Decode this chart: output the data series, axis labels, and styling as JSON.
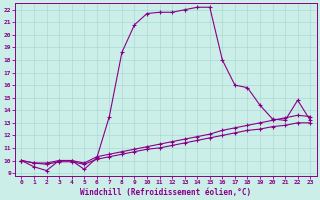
{
  "xlabel": "Windchill (Refroidissement éolien,°C)",
  "xlim": [
    -0.5,
    23.5
  ],
  "ylim": [
    8.8,
    22.5
  ],
  "xticks": [
    0,
    1,
    2,
    3,
    4,
    5,
    6,
    7,
    8,
    9,
    10,
    11,
    12,
    13,
    14,
    15,
    16,
    17,
    18,
    19,
    20,
    21,
    22,
    23
  ],
  "yticks": [
    9,
    10,
    11,
    12,
    13,
    14,
    15,
    16,
    17,
    18,
    19,
    20,
    21,
    22
  ],
  "bg_color": "#cceee8",
  "line_color": "#880088",
  "line1_x": [
    0,
    1,
    2,
    3,
    4,
    5,
    6,
    7,
    8,
    9,
    10,
    11,
    12,
    13,
    14,
    15,
    16,
    17,
    18,
    19,
    20,
    21,
    22,
    23
  ],
  "line1_y": [
    10.0,
    9.5,
    9.2,
    10.0,
    10.0,
    9.3,
    10.2,
    13.5,
    18.6,
    20.8,
    21.7,
    21.8,
    21.8,
    22.0,
    22.2,
    22.2,
    18.0,
    16.0,
    15.8,
    14.4,
    13.3,
    13.2,
    14.8,
    13.2
  ],
  "line2_x": [
    0,
    1,
    2,
    3,
    4,
    5,
    6,
    7,
    8,
    9,
    10,
    11,
    12,
    13,
    14,
    15,
    16,
    17,
    18,
    19,
    20,
    21,
    22,
    23
  ],
  "line2_y": [
    10.0,
    9.8,
    9.8,
    10.0,
    10.0,
    9.8,
    10.3,
    10.5,
    10.7,
    10.9,
    11.1,
    11.3,
    11.5,
    11.7,
    11.9,
    12.1,
    12.4,
    12.6,
    12.8,
    13.0,
    13.2,
    13.4,
    13.6,
    13.5
  ],
  "line3_x": [
    0,
    1,
    2,
    3,
    4,
    5,
    6,
    7,
    8,
    9,
    10,
    11,
    12,
    13,
    14,
    15,
    16,
    17,
    18,
    19,
    20,
    21,
    22,
    23
  ],
  "line3_y": [
    10.0,
    9.8,
    9.7,
    9.9,
    9.9,
    9.7,
    10.1,
    10.3,
    10.5,
    10.7,
    10.9,
    11.0,
    11.2,
    11.4,
    11.6,
    11.8,
    12.0,
    12.2,
    12.4,
    12.5,
    12.7,
    12.8,
    13.0,
    13.0
  ]
}
